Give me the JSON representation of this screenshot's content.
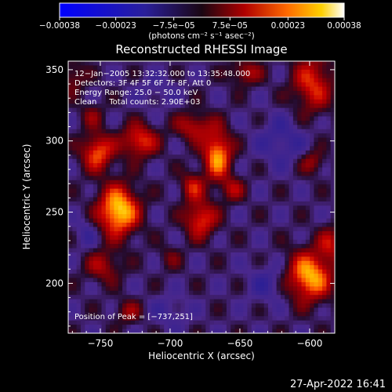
{
  "chart_data": {
    "type": "heatmap",
    "title": "Reconstructed RHESSI Image",
    "xlabel": "Heliocentric X (arcsec)",
    "ylabel": "Heliocentric Y (arcsec)",
    "xlim": [
      -773,
      -582
    ],
    "ylim": [
      165,
      356
    ],
    "x_ticks": [
      -750,
      -700,
      -650,
      -600
    ],
    "y_ticks": [
      200,
      250,
      300,
      350
    ],
    "colorbar": {
      "ticks": [
        {
          "value": -0.00038,
          "label": "−0.00038"
        },
        {
          "value": -0.00023,
          "label": "−0.00023"
        },
        {
          "value": -7.5e-05,
          "label": "−7.5e−05"
        },
        {
          "value": 7.5e-05,
          "label": "7.5e−05"
        },
        {
          "value": 0.00023,
          "label": "0.00023"
        },
        {
          "value": 0.00038,
          "label": "0.00038"
        }
      ],
      "range": [
        -0.00038,
        0.00038
      ],
      "unit_label": "(photons cm⁻² s⁻¹ asec⁻²)"
    },
    "annotations": [
      "12−Jan−2005 13:32:32.000 to 13:35:48.000",
      "Detectors: 3F 4F 5F 6F 7F 8F, Att 0",
      "Energy Range: 25.0 − 50.0 keV",
      "Clean     Total counts: 2.90E+03"
    ],
    "peak_label": "Position of Peak = [−737,251]",
    "peak": {
      "x": -737,
      "y": 251
    },
    "sources": [
      {
        "x": -737,
        "y": 251,
        "amp": 0.00038,
        "sx": 10,
        "sy": 12
      },
      {
        "x": -752,
        "y": 292,
        "amp": 0.00026,
        "sx": 8,
        "sy": 9
      },
      {
        "x": -722,
        "y": 300,
        "amp": 0.00024,
        "sx": 9,
        "sy": 8
      },
      {
        "x": -666,
        "y": 290,
        "amp": 0.00032,
        "sx": 7,
        "sy": 12
      },
      {
        "x": -683,
        "y": 310,
        "amp": 0.00018,
        "sx": 9,
        "sy": 7
      },
      {
        "x": -678,
        "y": 245,
        "amp": 0.00024,
        "sx": 8,
        "sy": 9
      },
      {
        "x": -684,
        "y": 268,
        "amp": 0.00018,
        "sx": 6,
        "sy": 7
      },
      {
        "x": -655,
        "y": 266,
        "amp": 0.00014,
        "sx": 6,
        "sy": 6
      },
      {
        "x": -600,
        "y": 205,
        "amp": 0.00034,
        "sx": 11,
        "sy": 12
      },
      {
        "x": -585,
        "y": 228,
        "amp": 0.00016,
        "sx": 6,
        "sy": 8
      },
      {
        "x": -598,
        "y": 340,
        "amp": 0.00022,
        "sx": 10,
        "sy": 14
      },
      {
        "x": -646,
        "y": 348,
        "amp": 0.00016,
        "sx": 8,
        "sy": 6
      },
      {
        "x": -598,
        "y": 285,
        "amp": 0.00014,
        "sx": 6,
        "sy": 6
      },
      {
        "x": -748,
        "y": 212,
        "amp": 0.00015,
        "sx": 9,
        "sy": 8
      },
      {
        "x": -730,
        "y": 180,
        "amp": 0.00012,
        "sx": 7,
        "sy": 6
      },
      {
        "x": -770,
        "y": 345,
        "amp": 0.00012,
        "sx": 7,
        "sy": 8
      },
      {
        "x": -756,
        "y": 318,
        "amp": 0.0001,
        "sx": 6,
        "sy": 6
      },
      {
        "x": -700,
        "y": 218,
        "amp": 8e-05,
        "sx": 6,
        "sy": 6
      },
      {
        "x": -620,
        "y": 300,
        "amp": -0.0001,
        "sx": 12,
        "sy": 12
      },
      {
        "x": -760,
        "y": 235,
        "amp": -8e-05,
        "sx": 6,
        "sy": 8
      },
      {
        "x": -700,
        "y": 180,
        "amp": -7e-05,
        "sx": 10,
        "sy": 8
      },
      {
        "x": -630,
        "y": 200,
        "amp": -9e-05,
        "sx": 10,
        "sy": 10
      },
      {
        "x": -710,
        "y": 335,
        "amp": -6e-05,
        "sx": 10,
        "sy": 8
      }
    ]
  },
  "footer": {
    "timestamp": "27-Apr-2022 16:41"
  }
}
